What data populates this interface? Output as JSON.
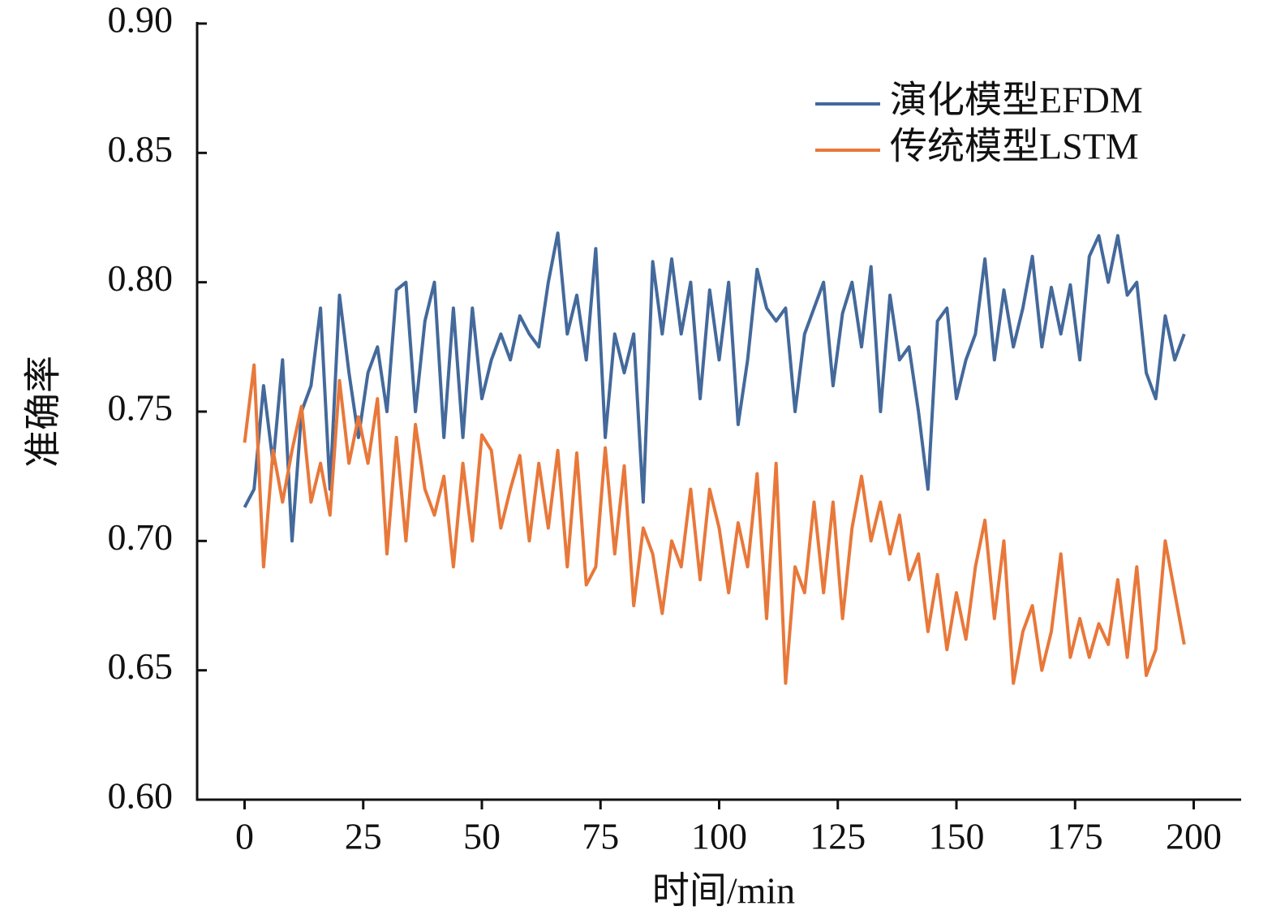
{
  "chart_data": {
    "type": "line",
    "xlabel": "时间/min",
    "ylabel": "准确率",
    "x": [
      0,
      2,
      4,
      6,
      8,
      10,
      12,
      14,
      16,
      18,
      20,
      22,
      24,
      26,
      28,
      30,
      32,
      34,
      36,
      38,
      40,
      42,
      44,
      46,
      48,
      50,
      52,
      54,
      56,
      58,
      60,
      62,
      64,
      66,
      68,
      70,
      72,
      74,
      76,
      78,
      80,
      82,
      84,
      86,
      88,
      90,
      92,
      94,
      96,
      98,
      100,
      102,
      104,
      106,
      108,
      110,
      112,
      114,
      116,
      118,
      120,
      122,
      124,
      126,
      128,
      130,
      132,
      134,
      136,
      138,
      140,
      142,
      144,
      146,
      148,
      150,
      152,
      154,
      156,
      158,
      160,
      162,
      164,
      166,
      168,
      170,
      172,
      174,
      176,
      178,
      180,
      182,
      184,
      186,
      188,
      190,
      192,
      194,
      196,
      198
    ],
    "series": [
      {
        "name": "演化模型EFDM",
        "color": "#44699b",
        "values": [
          0.713,
          0.72,
          0.76,
          0.73,
          0.77,
          0.7,
          0.75,
          0.76,
          0.79,
          0.72,
          0.795,
          0.765,
          0.74,
          0.765,
          0.775,
          0.75,
          0.797,
          0.8,
          0.75,
          0.785,
          0.8,
          0.74,
          0.79,
          0.74,
          0.79,
          0.755,
          0.77,
          0.78,
          0.77,
          0.787,
          0.78,
          0.775,
          0.8,
          0.819,
          0.78,
          0.795,
          0.77,
          0.813,
          0.74,
          0.78,
          0.765,
          0.78,
          0.715,
          0.808,
          0.78,
          0.809,
          0.78,
          0.8,
          0.755,
          0.797,
          0.77,
          0.8,
          0.745,
          0.77,
          0.805,
          0.79,
          0.785,
          0.79,
          0.75,
          0.78,
          0.79,
          0.8,
          0.76,
          0.788,
          0.8,
          0.775,
          0.806,
          0.75,
          0.795,
          0.77,
          0.775,
          0.75,
          0.72,
          0.785,
          0.79,
          0.755,
          0.77,
          0.78,
          0.809,
          0.77,
          0.797,
          0.775,
          0.79,
          0.81,
          0.775,
          0.798,
          0.78,
          0.799,
          0.77,
          0.81,
          0.818,
          0.8,
          0.818,
          0.795,
          0.8,
          0.765,
          0.755,
          0.787,
          0.77,
          0.78
        ]
      },
      {
        "name": "传统模型LSTM",
        "color": "#e8783a",
        "values": [
          0.738,
          0.768,
          0.69,
          0.735,
          0.715,
          0.735,
          0.752,
          0.715,
          0.73,
          0.71,
          0.762,
          0.73,
          0.748,
          0.73,
          0.755,
          0.695,
          0.74,
          0.7,
          0.745,
          0.72,
          0.71,
          0.725,
          0.69,
          0.73,
          0.7,
          0.741,
          0.735,
          0.705,
          0.72,
          0.733,
          0.7,
          0.73,
          0.705,
          0.735,
          0.69,
          0.734,
          0.683,
          0.69,
          0.736,
          0.695,
          0.729,
          0.675,
          0.705,
          0.695,
          0.672,
          0.7,
          0.69,
          0.72,
          0.685,
          0.72,
          0.705,
          0.68,
          0.707,
          0.69,
          0.726,
          0.67,
          0.73,
          0.645,
          0.69,
          0.68,
          0.715,
          0.68,
          0.715,
          0.67,
          0.705,
          0.725,
          0.7,
          0.715,
          0.695,
          0.71,
          0.685,
          0.695,
          0.665,
          0.687,
          0.658,
          0.68,
          0.662,
          0.69,
          0.708,
          0.67,
          0.7,
          0.645,
          0.665,
          0.675,
          0.65,
          0.665,
          0.695,
          0.655,
          0.67,
          0.655,
          0.668,
          0.66,
          0.685,
          0.655,
          0.69,
          0.648,
          0.658,
          0.7,
          0.68,
          0.66
        ]
      }
    ],
    "xlim": [
      -10,
      210
    ],
    "ylim": [
      0.6,
      0.9
    ],
    "xticks": [
      0,
      25,
      50,
      75,
      100,
      125,
      150,
      175,
      200
    ],
    "yticks": [
      {
        "value": 0.6,
        "label": "0.60"
      },
      {
        "value": 0.65,
        "label": "0.65"
      },
      {
        "value": 0.7,
        "label": "0.70"
      },
      {
        "value": 0.75,
        "label": "0.75"
      },
      {
        "value": 0.8,
        "label": "0.80"
      },
      {
        "value": 0.85,
        "label": "0.85"
      },
      {
        "value": 0.9,
        "label": "0.90"
      }
    ],
    "legend": "upper right",
    "grid": false
  }
}
